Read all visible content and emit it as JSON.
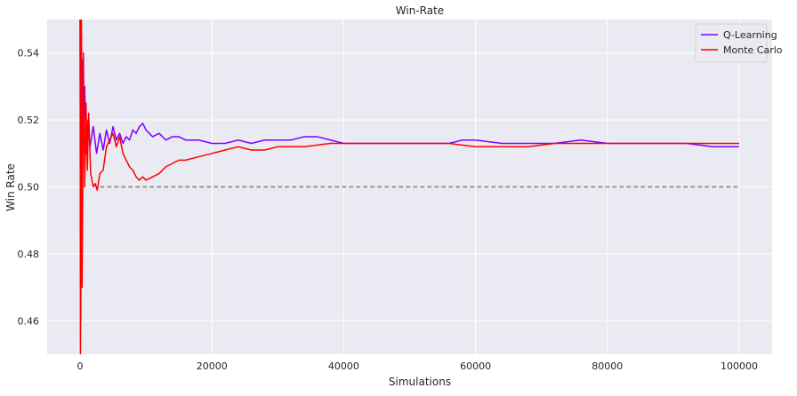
{
  "chart_data": {
    "type": "line",
    "title": "Win-Rate",
    "xlabel": "Simulations",
    "ylabel": "Win Rate",
    "xlim": [
      -5000,
      105000
    ],
    "ylim": [
      0.45,
      0.55
    ],
    "xticks": [
      0,
      20000,
      40000,
      60000,
      80000,
      100000
    ],
    "xtick_labels": [
      "0",
      "20000",
      "40000",
      "60000",
      "80000",
      "100000"
    ],
    "yticks": [
      0.46,
      0.48,
      0.5,
      0.52,
      0.54
    ],
    "ytick_labels": [
      "0.46",
      "0.48",
      "0.50",
      "0.52",
      "0.54"
    ],
    "grid": true,
    "legend_position": "upper right",
    "background": "#eaeaf2",
    "reference_line": {
      "y": 0.5,
      "x_range": [
        3000,
        100000
      ],
      "style": "dashed",
      "color": "#808080"
    },
    "series": [
      {
        "name": "Q-Learning",
        "color": "#8000ff",
        "x": [
          0,
          100,
          200,
          300,
          400,
          500,
          700,
          900,
          1200,
          1500,
          2000,
          2500,
          3000,
          3500,
          4000,
          4500,
          5000,
          5500,
          6000,
          6500,
          7000,
          7500,
          8000,
          8500,
          9000,
          9500,
          10000,
          11000,
          12000,
          13000,
          14000,
          15000,
          16000,
          18000,
          20000,
          22000,
          24000,
          26000,
          28000,
          30000,
          32000,
          34000,
          36000,
          38000,
          40000,
          44000,
          48000,
          52000,
          56000,
          58000,
          60000,
          64000,
          68000,
          72000,
          76000,
          80000,
          82000,
          84000,
          88000,
          92000,
          96000,
          100000
        ],
        "y": [
          0.55,
          0.46,
          0.545,
          0.505,
          0.538,
          0.515,
          0.53,
          0.51,
          0.52,
          0.512,
          0.518,
          0.51,
          0.516,
          0.511,
          0.517,
          0.513,
          0.518,
          0.514,
          0.516,
          0.513,
          0.515,
          0.514,
          0.517,
          0.516,
          0.518,
          0.519,
          0.517,
          0.515,
          0.516,
          0.514,
          0.515,
          0.515,
          0.514,
          0.514,
          0.513,
          0.513,
          0.514,
          0.513,
          0.514,
          0.514,
          0.514,
          0.515,
          0.515,
          0.514,
          0.513,
          0.513,
          0.513,
          0.513,
          0.513,
          0.514,
          0.514,
          0.513,
          0.513,
          0.513,
          0.514,
          0.513,
          0.513,
          0.513,
          0.513,
          0.513,
          0.512,
          0.512
        ]
      },
      {
        "name": "Monte Carlo",
        "color": "#ff0000",
        "x": [
          0,
          50,
          100,
          200,
          300,
          400,
          500,
          700,
          900,
          1100,
          1300,
          1600,
          2000,
          2300,
          2600,
          3000,
          3500,
          4000,
          4500,
          5000,
          5500,
          6000,
          6500,
          7000,
          7500,
          8000,
          8500,
          9000,
          9500,
          10000,
          11000,
          12000,
          13000,
          14000,
          15000,
          16000,
          18000,
          20000,
          22000,
          24000,
          26000,
          28000,
          30000,
          34000,
          38000,
          40000,
          44000,
          48000,
          52000,
          56000,
          60000,
          64000,
          68000,
          72000,
          76000,
          80000,
          84000,
          88000,
          92000,
          96000,
          100000
        ],
        "y": [
          0.55,
          0.45,
          0.47,
          0.55,
          0.47,
          0.5,
          0.54,
          0.5,
          0.525,
          0.505,
          0.522,
          0.504,
          0.5,
          0.501,
          0.499,
          0.504,
          0.505,
          0.512,
          0.514,
          0.516,
          0.512,
          0.515,
          0.51,
          0.508,
          0.506,
          0.505,
          0.503,
          0.502,
          0.503,
          0.502,
          0.503,
          0.504,
          0.506,
          0.507,
          0.508,
          0.508,
          0.509,
          0.51,
          0.511,
          0.512,
          0.511,
          0.511,
          0.512,
          0.512,
          0.513,
          0.513,
          0.513,
          0.513,
          0.513,
          0.513,
          0.512,
          0.512,
          0.512,
          0.513,
          0.513,
          0.513,
          0.513,
          0.513,
          0.513,
          0.513,
          0.513
        ]
      }
    ]
  }
}
